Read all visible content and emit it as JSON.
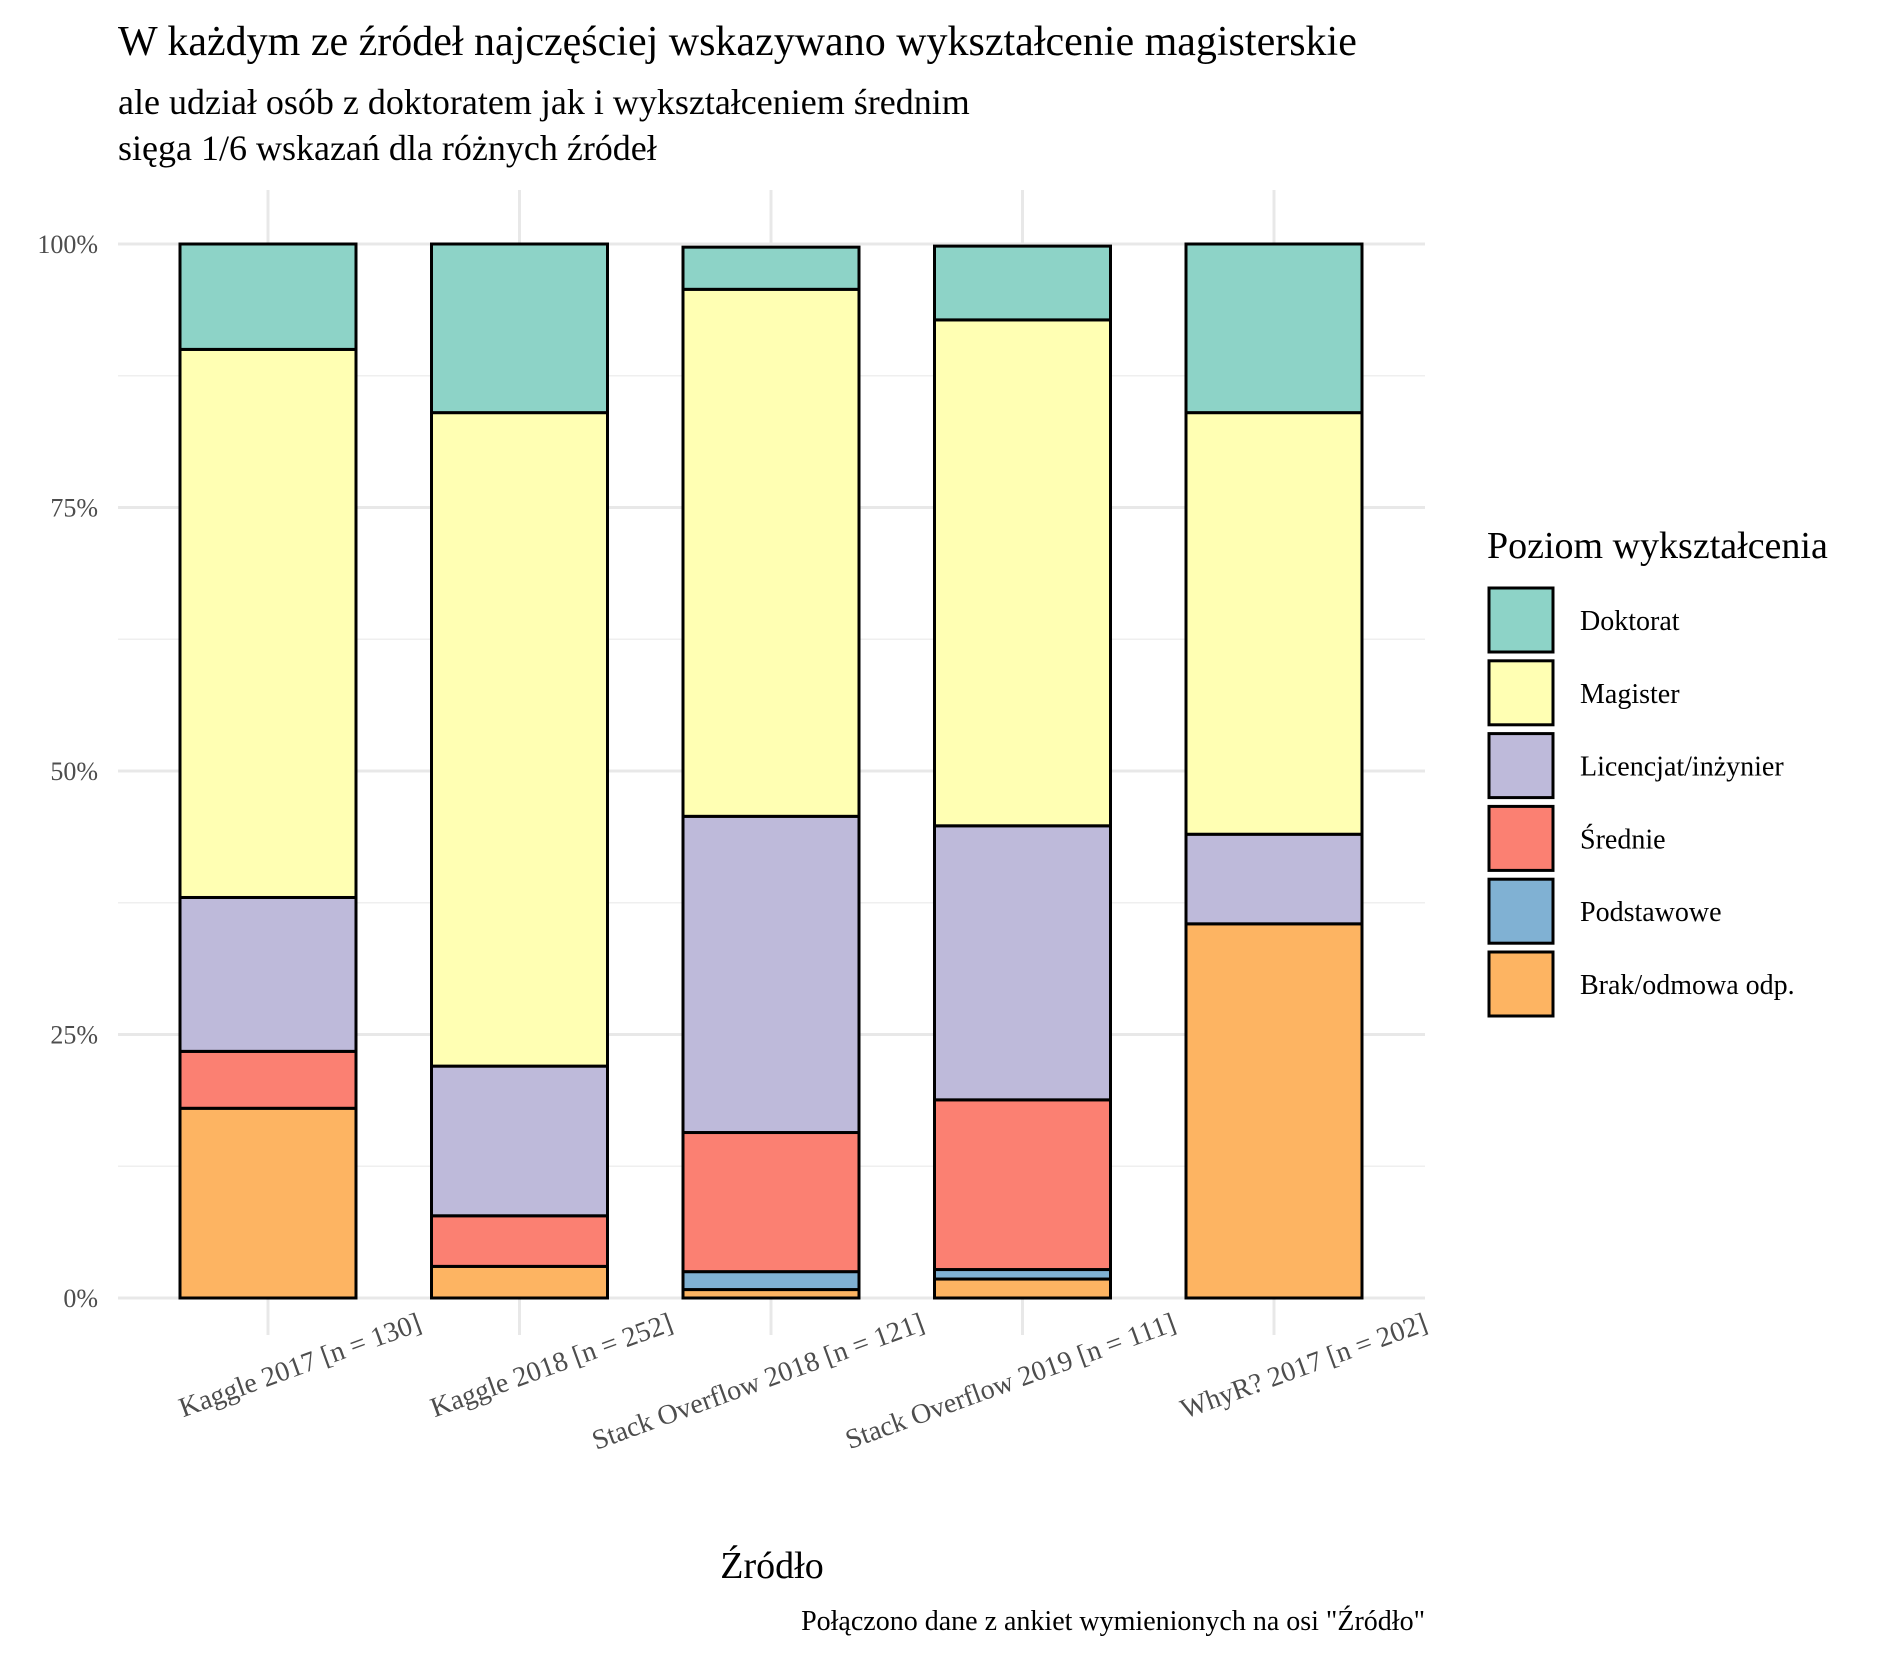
{
  "chart_data": {
    "type": "bar",
    "stacked": true,
    "normalized": true,
    "title": "W każdym ze źródeł najczęściej wskazywano wykształcenie magisterskie",
    "subtitle_lines": [
      "ale udział osób z doktoratem jak i wykształceniem średnim",
      "sięga 1/6 wskazań dla różnych źródeł"
    ],
    "xlabel": "Źródło",
    "ylabel": "",
    "caption": "Połączono dane z ankiet wymienionych na osi \"Źródło\"",
    "ylim": [
      0,
      1
    ],
    "y_ticks": [
      0,
      0.25,
      0.5,
      0.75,
      1
    ],
    "y_tick_labels": [
      "0%",
      "25%",
      "50%",
      "75%",
      "100%"
    ],
    "categories": [
      "Kaggle 2017 [n = 130]",
      "Kaggle 2018 [n = 252]",
      "Stack Overflow 2018 [n = 121]",
      "Stack Overflow 2019 [n = 111]",
      "WhyR? 2017 [n = 202]"
    ],
    "legend_title": "Poziom wykształcenia",
    "legend_position": "right",
    "grid": true,
    "series": [
      {
        "name": "Doktorat",
        "color": "#8DD3C7",
        "values": [
          0.1,
          0.16,
          0.04,
          0.07,
          0.16
        ]
      },
      {
        "name": "Magister",
        "color": "#FFFFB3",
        "values": [
          0.52,
          0.62,
          0.5,
          0.48,
          0.4
        ]
      },
      {
        "name": "Licencjat/inżynier",
        "color": "#BEBADA",
        "values": [
          0.146,
          0.142,
          0.3,
          0.26,
          0.085
        ]
      },
      {
        "name": "Średnie",
        "color": "#FB8072",
        "values": [
          0.054,
          0.048,
          0.132,
          0.161,
          0.0
        ]
      },
      {
        "name": "Podstawowe",
        "color": "#80B1D3",
        "values": [
          0.0,
          0.0,
          0.017,
          0.009,
          0.0
        ]
      },
      {
        "name": "Brak/odmowa odp.",
        "color": "#FDB462",
        "values": [
          0.18,
          0.03,
          0.008,
          0.018,
          0.355
        ]
      }
    ]
  }
}
